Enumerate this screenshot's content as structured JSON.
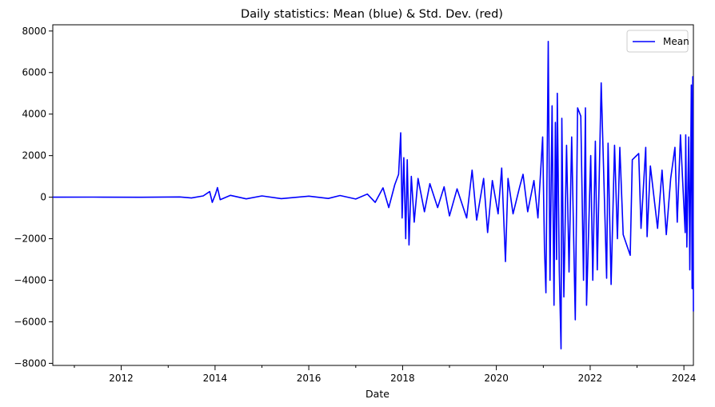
{
  "chart_data": {
    "type": "line",
    "title": "Daily statistics: Mean (blue) & Std. Dev. (red)",
    "xlabel": "Date",
    "ylabel": "",
    "xlim": [
      "2010-07-17",
      "2024-03-15"
    ],
    "ylim": [
      -8100,
      8300
    ],
    "x_ticks": [
      "2012",
      "2014",
      "2016",
      "2018",
      "2020",
      "2022",
      "2024"
    ],
    "y_ticks": [
      "-8000",
      "-6000",
      "-4000",
      "-2000",
      "0",
      "2000",
      "4000",
      "6000",
      "8000"
    ],
    "grid": false,
    "legend": {
      "position": "upper right",
      "entries": [
        "Mean"
      ]
    },
    "series": [
      {
        "name": "Mean",
        "color": "#0000ff",
        "points": [
          [
            "2010-07-17",
            0
          ],
          [
            "2011-06-01",
            5
          ],
          [
            "2012-06-01",
            -5
          ],
          [
            "2013-04-01",
            10
          ],
          [
            "2013-07-01",
            -40
          ],
          [
            "2013-10-01",
            60
          ],
          [
            "2013-11-20",
            270
          ],
          [
            "2013-12-10",
            -250
          ],
          [
            "2014-01-05",
            150
          ],
          [
            "2014-01-20",
            460
          ],
          [
            "2014-02-10",
            -120
          ],
          [
            "2014-05-01",
            90
          ],
          [
            "2014-09-01",
            -80
          ],
          [
            "2015-01-01",
            60
          ],
          [
            "2015-06-01",
            -70
          ],
          [
            "2016-01-01",
            50
          ],
          [
            "2016-06-01",
            -60
          ],
          [
            "2016-09-01",
            80
          ],
          [
            "2017-01-01",
            -90
          ],
          [
            "2017-04-01",
            150
          ],
          [
            "2017-06-01",
            -250
          ],
          [
            "2017-08-01",
            450
          ],
          [
            "2017-09-15",
            -500
          ],
          [
            "2017-11-01",
            600
          ],
          [
            "2017-12-01",
            1100
          ],
          [
            "2017-12-17",
            3100
          ],
          [
            "2017-12-28",
            -1000
          ],
          [
            "2018-01-10",
            1900
          ],
          [
            "2018-01-25",
            -2000
          ],
          [
            "2018-02-06",
            1800
          ],
          [
            "2018-02-20",
            -2300
          ],
          [
            "2018-03-10",
            1000
          ],
          [
            "2018-04-01",
            -1200
          ],
          [
            "2018-05-01",
            900
          ],
          [
            "2018-06-20",
            -700
          ],
          [
            "2018-08-01",
            650
          ],
          [
            "2018-10-01",
            -500
          ],
          [
            "2018-11-20",
            500
          ],
          [
            "2019-01-01",
            -900
          ],
          [
            "2019-03-01",
            400
          ],
          [
            "2019-05-15",
            -1000
          ],
          [
            "2019-06-26",
            1300
          ],
          [
            "2019-08-01",
            -1100
          ],
          [
            "2019-09-24",
            900
          ],
          [
            "2019-10-25",
            -1700
          ],
          [
            "2019-12-01",
            800
          ],
          [
            "2020-01-15",
            -800
          ],
          [
            "2020-02-12",
            1400
          ],
          [
            "2020-03-12",
            -3100
          ],
          [
            "2020-04-01",
            900
          ],
          [
            "2020-05-10",
            -800
          ],
          [
            "2020-07-01",
            500
          ],
          [
            "2020-07-27",
            1100
          ],
          [
            "2020-09-01",
            -700
          ],
          [
            "2020-10-20",
            800
          ],
          [
            "2020-11-20",
            -1000
          ],
          [
            "2020-12-27",
            2900
          ],
          [
            "2021-01-10",
            -2500
          ],
          [
            "2021-01-21",
            -4600
          ],
          [
            "2021-02-08",
            7500
          ],
          [
            "2021-02-22",
            -4000
          ],
          [
            "2021-03-10",
            4400
          ],
          [
            "2021-03-25",
            -5200
          ],
          [
            "2021-04-05",
            3600
          ],
          [
            "2021-04-14",
            -3000
          ],
          [
            "2021-04-20",
            5000
          ],
          [
            "2021-05-05",
            -3500
          ],
          [
            "2021-05-19",
            -7300
          ],
          [
            "2021-05-25",
            3800
          ],
          [
            "2021-06-10",
            -4800
          ],
          [
            "2021-07-01",
            2500
          ],
          [
            "2021-07-20",
            -3600
          ],
          [
            "2021-08-10",
            2900
          ],
          [
            "2021-09-07",
            -5900
          ],
          [
            "2021-09-25",
            4300
          ],
          [
            "2021-10-20",
            3900
          ],
          [
            "2021-11-10",
            -4000
          ],
          [
            "2021-11-25",
            4300
          ],
          [
            "2021-12-04",
            -5200
          ],
          [
            "2022-01-05",
            2000
          ],
          [
            "2022-01-21",
            -4000
          ],
          [
            "2022-02-10",
            2700
          ],
          [
            "2022-02-25",
            -3500
          ],
          [
            "2022-03-28",
            5500
          ],
          [
            "2022-05-09",
            -3900
          ],
          [
            "2022-05-20",
            2600
          ],
          [
            "2022-06-13",
            -4200
          ],
          [
            "2022-07-10",
            2500
          ],
          [
            "2022-08-01",
            -2000
          ],
          [
            "2022-08-20",
            2400
          ],
          [
            "2022-09-15",
            -1800
          ],
          [
            "2022-11-09",
            -2800
          ],
          [
            "2022-11-25",
            1800
          ],
          [
            "2023-01-14",
            2100
          ],
          [
            "2023-02-01",
            -1500
          ],
          [
            "2023-03-10",
            2400
          ],
          [
            "2023-03-20",
            -1900
          ],
          [
            "2023-04-15",
            1500
          ],
          [
            "2023-06-10",
            -1500
          ],
          [
            "2023-07-15",
            1300
          ],
          [
            "2023-08-17",
            -1800
          ],
          [
            "2023-09-20",
            900
          ],
          [
            "2023-10-23",
            2400
          ],
          [
            "2023-11-10",
            -1200
          ],
          [
            "2023-12-05",
            3000
          ],
          [
            "2024-01-11",
            -1700
          ],
          [
            "2024-01-15",
            3000
          ],
          [
            "2024-01-24",
            -2400
          ],
          [
            "2024-02-08",
            2900
          ],
          [
            "2024-02-16",
            -3500
          ],
          [
            "2024-02-28",
            5400
          ],
          [
            "2024-03-05",
            -4400
          ],
          [
            "2024-03-10",
            5800
          ],
          [
            "2024-03-15",
            -5500
          ]
        ]
      }
    ]
  }
}
